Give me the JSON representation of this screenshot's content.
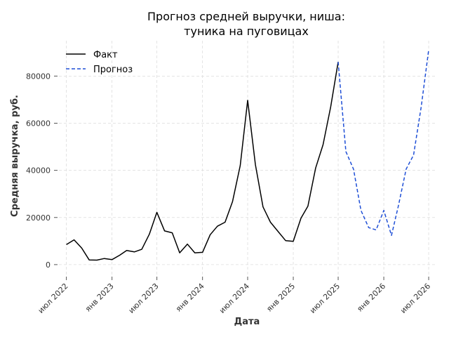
{
  "chart_data": {
    "type": "line",
    "title": [
      "Прогноз средней выручки, ниша:",
      "туника на пуговицах"
    ],
    "xlabel": "Дата",
    "ylabel": "Средняя выручка, руб.",
    "x_ticks": [
      {
        "date": "2022-07-01",
        "label": "июл 2022"
      },
      {
        "date": "2023-01-01",
        "label": "янв 2023"
      },
      {
        "date": "2023-07-01",
        "label": "июл 2023"
      },
      {
        "date": "2024-01-01",
        "label": "янв 2024"
      },
      {
        "date": "2024-07-01",
        "label": "июл 2024"
      },
      {
        "date": "2025-01-01",
        "label": "янв 2025"
      },
      {
        "date": "2025-07-01",
        "label": "июл 2025"
      },
      {
        "date": "2026-01-01",
        "label": "янв 2026"
      },
      {
        "date": "2026-07-01",
        "label": "июл 2026"
      }
    ],
    "y_ticks": [
      {
        "value": 0,
        "label": "0"
      },
      {
        "value": 20000,
        "label": "20000"
      },
      {
        "value": 40000,
        "label": "40000"
      },
      {
        "value": 60000,
        "label": "60000"
      },
      {
        "value": 80000,
        "label": "80000"
      }
    ],
    "xlim": [
      "2022-06-01",
      "2026-08-01"
    ],
    "ylim": [
      -4500,
      95000
    ],
    "grid": true,
    "legend_position": "top-left",
    "series": [
      {
        "name": "Факт",
        "color": "#000000",
        "style": "solid",
        "points": [
          {
            "x": "2022-07-01",
            "y": 8500
          },
          {
            "x": "2022-08-01",
            "y": 10500
          },
          {
            "x": "2022-09-01",
            "y": 7000
          },
          {
            "x": "2022-10-01",
            "y": 2000
          },
          {
            "x": "2022-11-01",
            "y": 1900
          },
          {
            "x": "2022-12-01",
            "y": 2600
          },
          {
            "x": "2023-01-01",
            "y": 2100
          },
          {
            "x": "2023-02-01",
            "y": 4000
          },
          {
            "x": "2023-03-01",
            "y": 6000
          },
          {
            "x": "2023-04-01",
            "y": 5400
          },
          {
            "x": "2023-05-01",
            "y": 6500
          },
          {
            "x": "2023-06-01",
            "y": 13000
          },
          {
            "x": "2023-07-01",
            "y": 22200
          },
          {
            "x": "2023-08-01",
            "y": 14300
          },
          {
            "x": "2023-09-01",
            "y": 13500
          },
          {
            "x": "2023-10-01",
            "y": 5000
          },
          {
            "x": "2023-11-01",
            "y": 8700
          },
          {
            "x": "2023-12-01",
            "y": 5000
          },
          {
            "x": "2024-01-01",
            "y": 5200
          },
          {
            "x": "2024-02-01",
            "y": 12700
          },
          {
            "x": "2024-03-01",
            "y": 16300
          },
          {
            "x": "2024-04-01",
            "y": 18000
          },
          {
            "x": "2024-05-01",
            "y": 26700
          },
          {
            "x": "2024-06-01",
            "y": 42000
          },
          {
            "x": "2024-07-01",
            "y": 69700
          },
          {
            "x": "2024-08-01",
            "y": 42500
          },
          {
            "x": "2024-09-01",
            "y": 24500
          },
          {
            "x": "2024-10-01",
            "y": 18000
          },
          {
            "x": "2024-11-01",
            "y": 14000
          },
          {
            "x": "2024-12-01",
            "y": 10200
          },
          {
            "x": "2025-01-01",
            "y": 9900
          },
          {
            "x": "2025-02-01",
            "y": 19700
          },
          {
            "x": "2025-03-01",
            "y": 24800
          },
          {
            "x": "2025-04-01",
            "y": 41000
          },
          {
            "x": "2025-05-01",
            "y": 50900
          },
          {
            "x": "2025-06-01",
            "y": 67000
          },
          {
            "x": "2025-07-01",
            "y": 86000
          }
        ]
      },
      {
        "name": "Прогноз",
        "color": "#1f4fd6",
        "style": "dashed",
        "points": [
          {
            "x": "2025-07-01",
            "y": 86000
          },
          {
            "x": "2025-08-01",
            "y": 48000
          },
          {
            "x": "2025-09-01",
            "y": 40500
          },
          {
            "x": "2025-10-01",
            "y": 23000
          },
          {
            "x": "2025-11-01",
            "y": 15700
          },
          {
            "x": "2025-12-01",
            "y": 14700
          },
          {
            "x": "2026-01-01",
            "y": 23000
          },
          {
            "x": "2026-02-01",
            "y": 12400
          },
          {
            "x": "2026-03-01",
            "y": 25000
          },
          {
            "x": "2026-04-01",
            "y": 40500
          },
          {
            "x": "2026-05-01",
            "y": 46500
          },
          {
            "x": "2026-06-01",
            "y": 67000
          },
          {
            "x": "2026-07-01",
            "y": 91000
          }
        ]
      }
    ]
  }
}
